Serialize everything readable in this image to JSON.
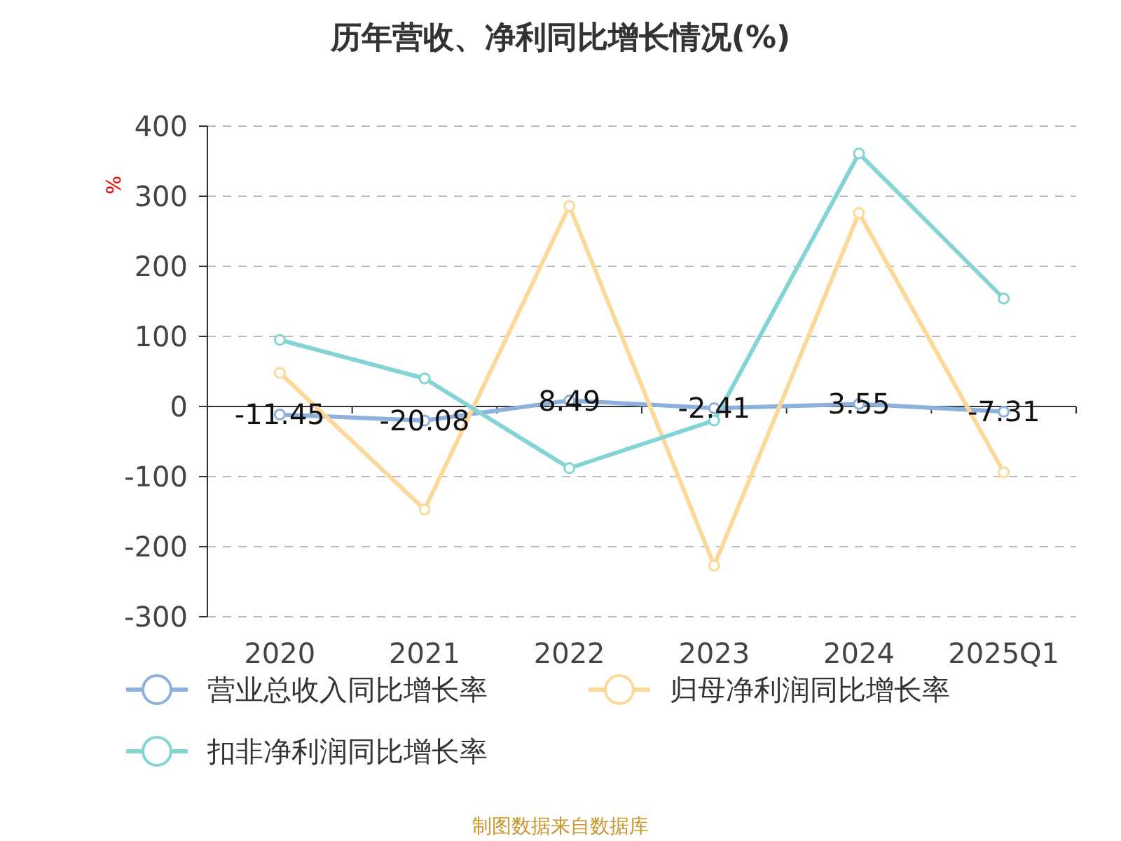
{
  "chart_data": {
    "type": "line",
    "title": "历年营收、净利同比增长情况(%)",
    "ylabel": "%",
    "categories": [
      "2020",
      "2021",
      "2022",
      "2023",
      "2024",
      "2025Q1"
    ],
    "series": [
      {
        "name": "营业总收入同比增长率",
        "color": "#8eb0dc",
        "values": [
          -11.45,
          -20.08,
          8.49,
          -2.41,
          3.55,
          -7.31
        ],
        "value_labels": [
          "-11.45",
          "-20.08",
          "8.49",
          "-2.41",
          "3.55",
          "-7.31"
        ]
      },
      {
        "name": "归母净利润同比增长率",
        "color": "#fdd999",
        "values": [
          48,
          -147,
          286,
          -227,
          276,
          -94
        ]
      },
      {
        "name": "扣非净利润同比增长率",
        "color": "#84d4d6",
        "values": [
          95,
          40,
          -88,
          -20,
          361,
          154
        ]
      }
    ],
    "ylim": [
      -300,
      400
    ],
    "yticks": [
      -300,
      -200,
      -100,
      0,
      100,
      200,
      300,
      400
    ],
    "grid": "y",
    "legend": "bottom",
    "marker": "circle",
    "line_style": "solid",
    "annotations": [
      "制图数据来自数据库"
    ]
  }
}
